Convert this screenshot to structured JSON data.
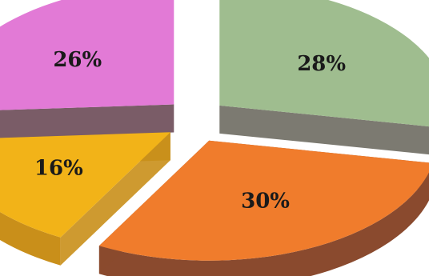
{
  "chart_data": {
    "type": "pie",
    "style": "3d-exploded",
    "title": "",
    "slices": [
      {
        "value": 28,
        "label": "28%",
        "color": "#9fbd8f",
        "side_color": "#6e6b62"
      },
      {
        "value": 30,
        "label": "30%",
        "color": "#f07c2c",
        "side_color": "#8a4a2e"
      },
      {
        "value": 16,
        "label": "16%",
        "color": "#f2b318",
        "side_color": "#c98f1a"
      },
      {
        "value": 26,
        "label": "26%",
        "color": "#e27ad6",
        "side_color": "#6b4a56"
      }
    ]
  }
}
